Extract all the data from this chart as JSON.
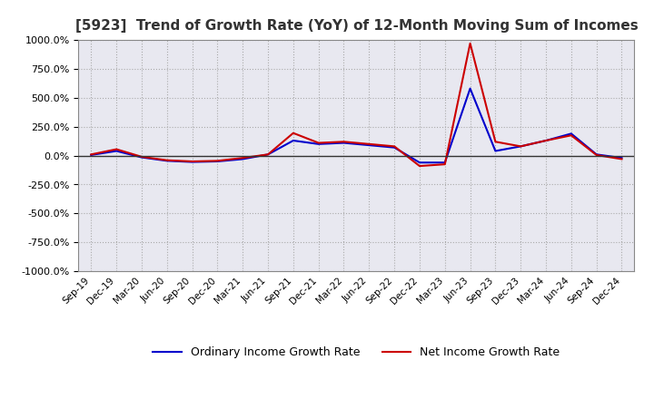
{
  "title": "[5923]  Trend of Growth Rate (YoY) of 12-Month Moving Sum of Incomes",
  "title_fontsize": 11,
  "ylim": [
    -1000,
    1000
  ],
  "yticks": [
    -1000,
    -750,
    -500,
    -250,
    0,
    250,
    500,
    750,
    1000
  ],
  "background_color": "#ffffff",
  "plot_bg_color": "#e8e8f0",
  "grid_color": "#aaaaaa",
  "ordinary_color": "#0000cc",
  "net_color": "#cc0000",
  "legend_labels": [
    "Ordinary Income Growth Rate",
    "Net Income Growth Rate"
  ],
  "x_labels": [
    "Sep-19",
    "Dec-19",
    "Mar-20",
    "Jun-20",
    "Sep-20",
    "Dec-20",
    "Mar-21",
    "Jun-21",
    "Sep-21",
    "Dec-21",
    "Mar-22",
    "Jun-22",
    "Sep-22",
    "Dec-22",
    "Mar-23",
    "Jun-23",
    "Sep-23",
    "Dec-23",
    "Mar-24",
    "Jun-24",
    "Sep-24",
    "Dec-24"
  ],
  "ordinary_values": [
    5,
    40,
    -15,
    -45,
    -55,
    -50,
    -30,
    10,
    130,
    100,
    110,
    90,
    70,
    -60,
    -60,
    580,
    40,
    80,
    130,
    190,
    10,
    -20
  ],
  "net_values": [
    10,
    55,
    -10,
    -40,
    -50,
    -45,
    -20,
    10,
    195,
    110,
    120,
    100,
    80,
    -90,
    -75,
    970,
    120,
    80,
    130,
    175,
    5,
    -30
  ]
}
